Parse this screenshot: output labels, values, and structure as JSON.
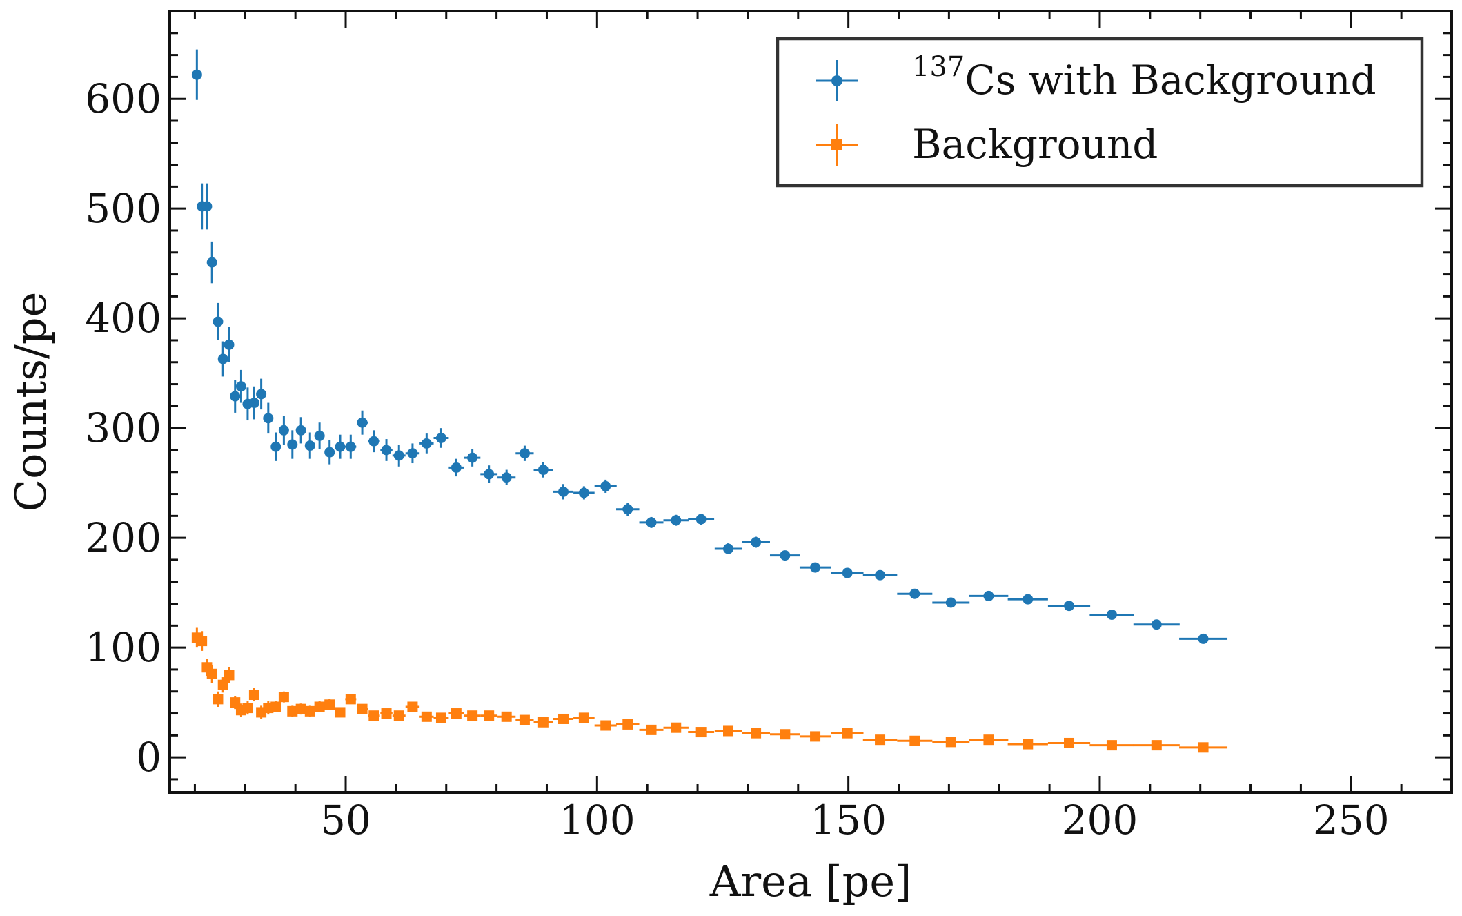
{
  "chart_data": {
    "type": "scatter",
    "xlabel": "Area [pe]",
    "ylabel": "Counts/pe",
    "xlim": [
      15,
      270
    ],
    "ylim": [
      -32,
      680
    ],
    "x_ticks": [
      50,
      100,
      150,
      200,
      250
    ],
    "y_ticks": [
      0,
      100,
      200,
      300,
      400,
      500,
      600
    ],
    "x_tick_labels": [
      "50",
      "100",
      "150",
      "200",
      "250"
    ],
    "y_tick_labels": [
      "0",
      "100",
      "200",
      "300",
      "400",
      "500",
      "600"
    ],
    "grid": false,
    "legend_position": "top-right",
    "legend": {
      "cs_superscript": "137",
      "cs_label": "Cs with Background",
      "bg_label": "Background"
    },
    "series": [
      {
        "name": "137Cs with Background",
        "color": "#1f77b4",
        "marker": "circle",
        "points": [
          [
            20.4,
            622,
            23
          ],
          [
            21.4,
            502,
            21
          ],
          [
            22.4,
            502,
            21
          ],
          [
            23.4,
            451,
            19
          ],
          [
            24.6,
            397,
            17
          ],
          [
            25.6,
            363,
            16
          ],
          [
            26.8,
            376,
            16
          ],
          [
            28.0,
            329,
            15
          ],
          [
            29.2,
            338,
            15
          ],
          [
            30.5,
            322,
            15
          ],
          [
            31.8,
            323,
            15
          ],
          [
            33.2,
            331,
            14
          ],
          [
            34.6,
            309,
            14
          ],
          [
            36.1,
            283,
            13
          ],
          [
            37.7,
            298,
            13
          ],
          [
            39.4,
            285,
            13
          ],
          [
            41.1,
            298,
            12
          ],
          [
            42.9,
            284,
            12
          ],
          [
            44.8,
            293,
            12
          ],
          [
            46.8,
            278,
            11
          ],
          [
            48.9,
            283,
            11
          ],
          [
            51.0,
            283,
            11
          ],
          [
            53.3,
            305,
            11
          ],
          [
            55.6,
            288,
            10
          ],
          [
            58.1,
            280,
            10
          ],
          [
            60.6,
            275,
            10
          ],
          [
            63.3,
            277,
            9
          ],
          [
            66.1,
            286,
            9
          ],
          [
            69.0,
            291,
            9
          ],
          [
            72.0,
            264,
            8
          ],
          [
            75.2,
            273,
            8
          ],
          [
            78.5,
            258,
            8
          ],
          [
            82.0,
            255,
            7
          ],
          [
            85.6,
            277,
            7
          ],
          [
            89.3,
            262,
            7
          ],
          [
            93.3,
            242,
            7
          ],
          [
            97.4,
            241,
            6
          ],
          [
            101.7,
            247,
            6
          ],
          [
            106.1,
            226,
            6
          ],
          [
            110.8,
            214,
            5
          ],
          [
            115.7,
            216,
            5
          ],
          [
            120.7,
            217,
            5
          ],
          [
            126.1,
            190,
            5
          ],
          [
            131.6,
            196,
            5
          ],
          [
            137.4,
            184,
            4
          ],
          [
            143.4,
            173,
            4
          ],
          [
            149.8,
            168,
            4
          ],
          [
            156.3,
            166,
            4
          ],
          [
            163.2,
            149,
            3
          ],
          [
            170.4,
            141,
            3
          ],
          [
            177.9,
            147,
            3
          ],
          [
            185.7,
            144,
            3
          ],
          [
            193.9,
            138,
            3
          ],
          [
            202.4,
            130,
            3
          ],
          [
            211.3,
            121,
            2
          ],
          [
            220.6,
            108,
            2
          ]
        ],
        "x_err": [
          0.5,
          0.5,
          0.5,
          0.5,
          0.5,
          0.6,
          0.6,
          0.6,
          0.6,
          0.6,
          0.7,
          0.7,
          0.7,
          0.8,
          0.8,
          0.8,
          0.9,
          0.9,
          1.0,
          1.0,
          1.0,
          1.1,
          1.1,
          1.2,
          1.2,
          1.3,
          1.4,
          1.4,
          1.5,
          1.5,
          1.6,
          1.7,
          1.8,
          1.8,
          1.9,
          2.0,
          2.1,
          2.2,
          2.3,
          2.4,
          2.5,
          2.6,
          2.7,
          2.8,
          3.0,
          3.1,
          3.2,
          3.4,
          3.5,
          3.7,
          3.9,
          4.0,
          4.2,
          4.4,
          4.6,
          4.8
        ]
      },
      {
        "name": "Background",
        "color": "#ff7f0e",
        "marker": "square",
        "points": [
          [
            20.4,
            109,
            9
          ],
          [
            21.4,
            106,
            9
          ],
          [
            22.4,
            82,
            8
          ],
          [
            23.4,
            76,
            8
          ],
          [
            24.6,
            53,
            7
          ],
          [
            25.6,
            66,
            7
          ],
          [
            26.8,
            75,
            7
          ],
          [
            28.0,
            50,
            6
          ],
          [
            29.2,
            43,
            6
          ],
          [
            30.5,
            45,
            6
          ],
          [
            31.8,
            57,
            6
          ],
          [
            33.2,
            41,
            6
          ],
          [
            34.6,
            45,
            6
          ],
          [
            36.1,
            46,
            5
          ],
          [
            37.7,
            55,
            5
          ],
          [
            39.4,
            42,
            5
          ],
          [
            41.1,
            44,
            5
          ],
          [
            42.9,
            42,
            5
          ],
          [
            44.8,
            46,
            5
          ],
          [
            46.8,
            48,
            5
          ],
          [
            48.9,
            41,
            4
          ],
          [
            51.0,
            53,
            4
          ],
          [
            53.3,
            44,
            4
          ],
          [
            55.6,
            38,
            4
          ],
          [
            58.1,
            40,
            4
          ],
          [
            60.6,
            38,
            4
          ],
          [
            63.3,
            46,
            4
          ],
          [
            66.1,
            37,
            4
          ],
          [
            69.0,
            36,
            3
          ],
          [
            72.0,
            40,
            3
          ],
          [
            75.2,
            38,
            3
          ],
          [
            78.5,
            38,
            3
          ],
          [
            82.0,
            37,
            3
          ],
          [
            85.6,
            34,
            3
          ],
          [
            89.3,
            32,
            3
          ],
          [
            93.3,
            35,
            3
          ],
          [
            97.4,
            36,
            3
          ],
          [
            101.7,
            29,
            2
          ],
          [
            106.1,
            30,
            2
          ],
          [
            110.8,
            25,
            2
          ],
          [
            115.7,
            27,
            2
          ],
          [
            120.7,
            23,
            2
          ],
          [
            126.1,
            24,
            2
          ],
          [
            131.6,
            22,
            2
          ],
          [
            137.4,
            21,
            2
          ],
          [
            143.4,
            19,
            2
          ],
          [
            149.8,
            22,
            2
          ],
          [
            156.3,
            16,
            2
          ],
          [
            163.2,
            15,
            1
          ],
          [
            170.4,
            14,
            1
          ],
          [
            177.9,
            16,
            1
          ],
          [
            185.7,
            12,
            1
          ],
          [
            193.9,
            13,
            1
          ],
          [
            202.4,
            11,
            1
          ],
          [
            211.3,
            11,
            1
          ],
          [
            220.6,
            9,
            1
          ]
        ]
      }
    ]
  }
}
